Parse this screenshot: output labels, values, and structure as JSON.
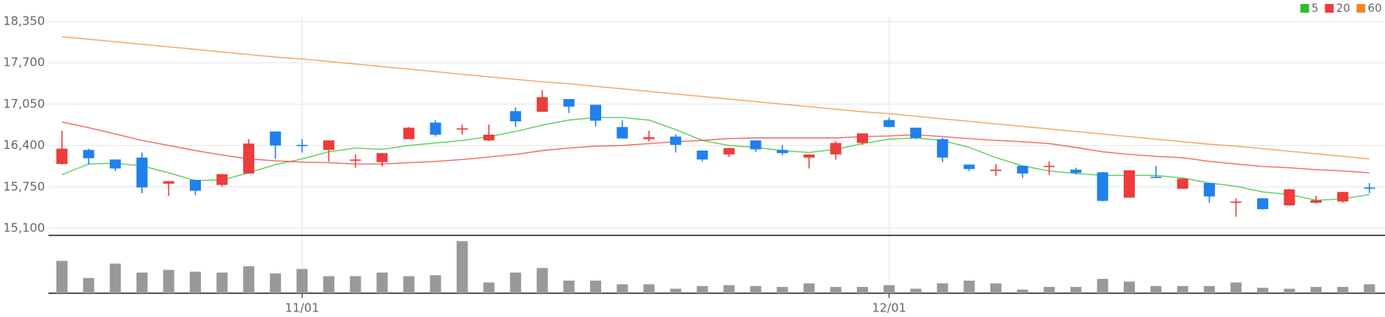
{
  "chart_data": {
    "type": "candlestick",
    "categories": [
      null,
      null,
      null,
      null,
      null,
      null,
      null,
      null,
      null,
      "11/01",
      null,
      null,
      null,
      null,
      null,
      null,
      null,
      null,
      null,
      null,
      null,
      null,
      null,
      null,
      null,
      null,
      null,
      null,
      null,
      null,
      null,
      "12/01",
      null,
      null,
      null,
      null,
      null,
      null,
      null,
      null,
      null,
      null,
      null,
      null,
      null,
      null,
      null,
      null,
      null,
      null
    ],
    "open": [
      16110,
      16330,
      16180,
      16210,
      15800,
      15860,
      15780,
      15960,
      16620,
      16410,
      16330,
      16160,
      16140,
      16500,
      16760,
      16650,
      16480,
      16940,
      16930,
      17130,
      17040,
      16690,
      16500,
      16540,
      16320,
      16260,
      16480,
      16330,
      16210,
      16260,
      16440,
      16800,
      16680,
      16500,
      16100,
      16000,
      16080,
      16070,
      16020,
      15980,
      15580,
      15910,
      15720,
      15810,
      15500,
      15570,
      15460,
      15500,
      15520,
      15740
    ],
    "high": [
      16630,
      16350,
      16180,
      16290,
      15840,
      15860,
      15950,
      16500,
      16620,
      16500,
      16480,
      16260,
      16280,
      16690,
      16800,
      16730,
      16730,
      17000,
      17270,
      17130,
      17040,
      16800,
      16630,
      16580,
      16320,
      16360,
      16480,
      16410,
      16260,
      16470,
      16590,
      16840,
      16680,
      16520,
      16100,
      16110,
      16080,
      16150,
      16050,
      15980,
      16010,
      16080,
      15880,
      15810,
      15570,
      15570,
      15720,
      15610,
      15670,
      15810
    ],
    "low": [
      16100,
      16100,
      16000,
      15650,
      15610,
      15620,
      15750,
      15960,
      16190,
      16290,
      16150,
      16050,
      16070,
      16500,
      16540,
      16570,
      16470,
      16690,
      16930,
      16910,
      16700,
      16510,
      16460,
      16290,
      16150,
      16220,
      16300,
      16250,
      16040,
      16180,
      16410,
      16690,
      16500,
      16140,
      16000,
      15920,
      15890,
      15940,
      15940,
      15520,
      15580,
      15890,
      15720,
      15500,
      15280,
      15390,
      15450,
      15490,
      15500,
      15650
    ],
    "close": [
      16350,
      16200,
      16040,
      15740,
      15840,
      15690,
      15950,
      16430,
      16400,
      16390,
      16480,
      16180,
      16280,
      16680,
      16570,
      16670,
      16570,
      16780,
      17160,
      17010,
      16790,
      16510,
      16530,
      16410,
      16180,
      16360,
      16340,
      16280,
      16260,
      16440,
      16590,
      16690,
      16520,
      16210,
      16030,
      16020,
      15960,
      16080,
      15970,
      15530,
      16010,
      15890,
      15880,
      15600,
      15520,
      15400,
      15710,
      15540,
      15670,
      15720
    ],
    "up_color": "#ee3b3b",
    "down_color": "#1f80ee",
    "series": [
      {
        "name": "5",
        "color": "#2bbf2b",
        "values": [
          15940,
          16110,
          16120,
          16080,
          15970,
          15850,
          15860,
          15970,
          16100,
          16190,
          16300,
          16360,
          16340,
          16400,
          16440,
          16480,
          16540,
          16620,
          16720,
          16800,
          16840,
          16840,
          16800,
          16650,
          16480,
          16400,
          16370,
          16320,
          16290,
          16340,
          16430,
          16500,
          16520,
          16480,
          16370,
          16210,
          16080,
          16000,
          15960,
          15930,
          15930,
          15930,
          15890,
          15810,
          15760,
          15670,
          15630,
          15540,
          15560,
          15630
        ]
      },
      {
        "name": "20",
        "color": "#ee3b3b",
        "values": [
          16770,
          16680,
          16580,
          16480,
          16400,
          16320,
          16250,
          16190,
          16160,
          16140,
          16130,
          16110,
          16110,
          16130,
          16150,
          16180,
          16220,
          16260,
          16320,
          16360,
          16390,
          16400,
          16430,
          16460,
          16480,
          16510,
          16520,
          16520,
          16520,
          16520,
          16540,
          16550,
          16570,
          16540,
          16510,
          16480,
          16460,
          16430,
          16370,
          16300,
          16260,
          16230,
          16210,
          16150,
          16110,
          16070,
          16050,
          16020,
          16000,
          15970
        ]
      },
      {
        "name": "60",
        "color": "#f08a2c",
        "values": [
          18110,
          18070,
          18030,
          17990,
          17950,
          17910,
          17870,
          17830,
          17790,
          17760,
          17720,
          17680,
          17640,
          17600,
          17560,
          17520,
          17480,
          17440,
          17400,
          17370,
          17330,
          17290,
          17250,
          17210,
          17170,
          17130,
          17090,
          17050,
          17010,
          16970,
          16930,
          16900,
          16860,
          16820,
          16780,
          16740,
          16700,
          16660,
          16620,
          16580,
          16540,
          16500,
          16460,
          16420,
          16390,
          16350,
          16310,
          16270,
          16230,
          16190
        ]
      }
    ],
    "volume": {
      "color": "#999999",
      "ylim": [
        0,
        60
      ],
      "values": [
        36,
        17,
        33,
        23,
        26,
        24,
        23,
        30,
        22,
        27,
        19,
        19,
        23,
        19,
        20,
        58,
        12,
        23,
        28,
        14,
        14,
        10,
        10,
        5,
        8,
        9,
        8,
        7,
        11,
        7,
        7,
        9,
        5,
        11,
        14,
        11,
        4,
        7,
        7,
        16,
        13,
        8,
        8,
        8,
        12,
        6,
        5,
        7,
        7,
        10
      ]
    },
    "ylim": [
      15100,
      18350
    ],
    "yticks": [
      {
        "value": 15100,
        "label": "15,100"
      },
      {
        "value": 15750,
        "label": "15,750"
      },
      {
        "value": 16400,
        "label": "16,400"
      },
      {
        "value": 17050,
        "label": "17,050"
      },
      {
        "value": 17700,
        "label": "17,700"
      },
      {
        "value": 18350,
        "label": "18,350"
      }
    ],
    "grid": true,
    "legend": "top-right"
  }
}
